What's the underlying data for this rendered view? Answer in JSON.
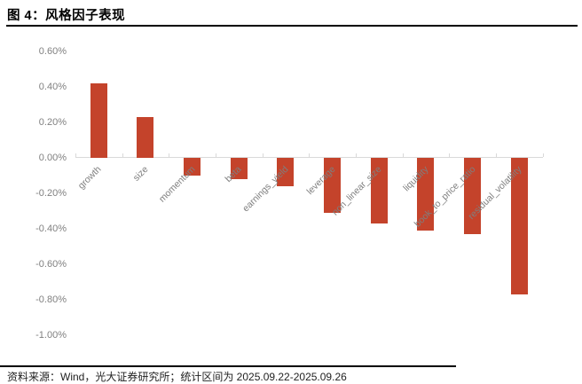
{
  "figure": {
    "title": "图 4：风格因子表现",
    "footer": "资料来源：Wind，光大证券研究所；统计区间为 2025.09.22-2025.09.26"
  },
  "chart_data": {
    "type": "bar",
    "title": "图 4：风格因子表现",
    "categories": [
      "growth",
      "size",
      "momentum",
      "beta",
      "earnings_yield",
      "leverage",
      "non_linear_size",
      "liquidity",
      "book_to_price_ratio",
      "residual_volatility"
    ],
    "values": [
      0.42,
      0.23,
      -0.1,
      -0.12,
      -0.16,
      -0.31,
      -0.37,
      -0.41,
      -0.43,
      -0.77
    ],
    "value_unit": "%",
    "xlabel": "",
    "ylabel": "",
    "ylim": [
      -1.0,
      0.6
    ],
    "y_tick_labels": [
      "0.60%",
      "0.40%",
      "0.20%",
      "0.00%",
      "-0.20%",
      "-0.40%",
      "-0.60%",
      "-0.80%",
      "-1.00%"
    ],
    "grid": false,
    "legend_position": "none",
    "x_label_rotation_deg": 45,
    "bar_color": "#C4432B",
    "axis_color": "#D9D9D9",
    "y_tick_label_color": "#808080",
    "x_tick_label_color": "#7F7F7F"
  }
}
